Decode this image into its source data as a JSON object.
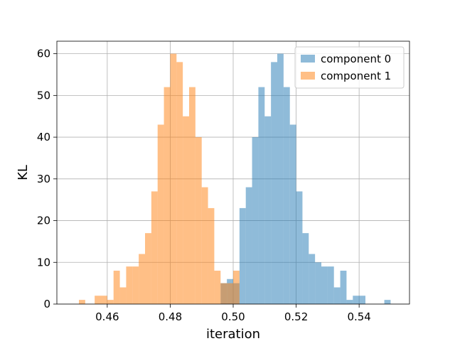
{
  "chart_data": {
    "type": "histogram",
    "title": "",
    "xlabel": "iteration",
    "ylabel": "KL",
    "xlim": [
      0.444,
      0.556
    ],
    "ylim": [
      0,
      63
    ],
    "x_ticks": [
      "0.46",
      "0.48",
      "0.50",
      "0.52",
      "0.54"
    ],
    "y_ticks": [
      "0",
      "10",
      "20",
      "30",
      "40",
      "50",
      "60"
    ],
    "grid": true,
    "legend_position": "top-right",
    "bin_width": 0.002,
    "series": [
      {
        "name": "component 0",
        "color": "#1f77b4",
        "alpha": 0.5,
        "bins": [
          {
            "x": 0.496,
            "v": 5
          },
          {
            "x": 0.498,
            "v": 6
          },
          {
            "x": 0.5,
            "v": 5
          },
          {
            "x": 0.502,
            "v": 23
          },
          {
            "x": 0.504,
            "v": 28
          },
          {
            "x": 0.506,
            "v": 40
          },
          {
            "x": 0.508,
            "v": 52
          },
          {
            "x": 0.51,
            "v": 45
          },
          {
            "x": 0.512,
            "v": 58
          },
          {
            "x": 0.514,
            "v": 60
          },
          {
            "x": 0.516,
            "v": 52
          },
          {
            "x": 0.518,
            "v": 43
          },
          {
            "x": 0.52,
            "v": 27
          },
          {
            "x": 0.522,
            "v": 17
          },
          {
            "x": 0.524,
            "v": 12
          },
          {
            "x": 0.526,
            "v": 10
          },
          {
            "x": 0.528,
            "v": 9
          },
          {
            "x": 0.53,
            "v": 9
          },
          {
            "x": 0.532,
            "v": 4
          },
          {
            "x": 0.534,
            "v": 8
          },
          {
            "x": 0.536,
            "v": 1
          },
          {
            "x": 0.538,
            "v": 2
          },
          {
            "x": 0.54,
            "v": 2
          },
          {
            "x": 0.548,
            "v": 1
          }
        ]
      },
      {
        "name": "component 1",
        "color": "#ff7f0e",
        "alpha": 0.5,
        "bins": [
          {
            "x": 0.451,
            "v": 1
          },
          {
            "x": 0.456,
            "v": 2
          },
          {
            "x": 0.458,
            "v": 2
          },
          {
            "x": 0.46,
            "v": 1
          },
          {
            "x": 0.462,
            "v": 8
          },
          {
            "x": 0.464,
            "v": 4
          },
          {
            "x": 0.466,
            "v": 9
          },
          {
            "x": 0.468,
            "v": 9
          },
          {
            "x": 0.47,
            "v": 12
          },
          {
            "x": 0.472,
            "v": 17
          },
          {
            "x": 0.474,
            "v": 27
          },
          {
            "x": 0.476,
            "v": 43
          },
          {
            "x": 0.478,
            "v": 52
          },
          {
            "x": 0.48,
            "v": 60
          },
          {
            "x": 0.482,
            "v": 58
          },
          {
            "x": 0.484,
            "v": 45
          },
          {
            "x": 0.486,
            "v": 52
          },
          {
            "x": 0.488,
            "v": 40
          },
          {
            "x": 0.49,
            "v": 28
          },
          {
            "x": 0.492,
            "v": 23
          },
          {
            "x": 0.494,
            "v": 8
          },
          {
            "x": 0.496,
            "v": 5
          },
          {
            "x": 0.498,
            "v": 5
          },
          {
            "x": 0.5,
            "v": 8
          }
        ]
      }
    ]
  }
}
